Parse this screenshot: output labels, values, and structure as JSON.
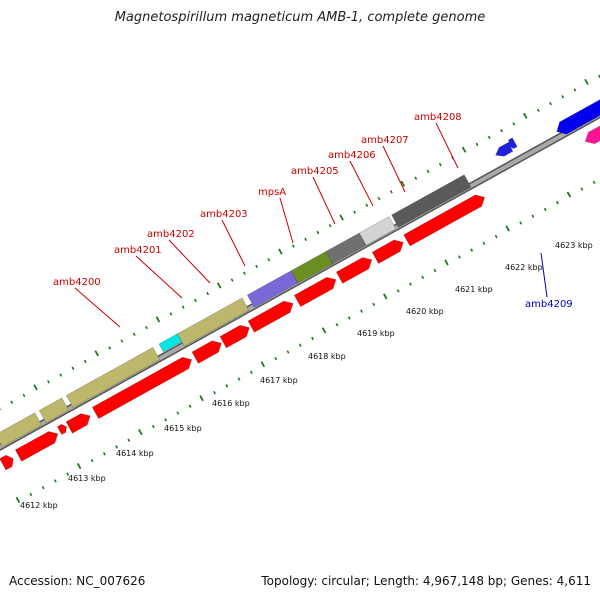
{
  "title": "Magnetospirillum magneticum AMB-1, complete genome",
  "footer": {
    "accession": "Accession: NC_007626",
    "summary": "Topology: circular; Length: 4,967,148 bp; Genes: 4,611"
  },
  "colors": {
    "backbone": "#a9a9a9",
    "cds_forward": "#ff0000",
    "feature_khaki": "#bdb76b",
    "label_red": "#cc0000",
    "label_blue": "#0000cc",
    "tick": "#1a7a1a"
  },
  "axis_labels": [
    "4612 kbp",
    "4613 kbp",
    "4614 kbp",
    "4615 kbp",
    "4616 kbp",
    "4617 kbp",
    "4618 kbp",
    "4619 kbp",
    "4620 kbp",
    "4621 kbp",
    "4622 kbp",
    "4623 kbp"
  ],
  "gene_labels": [
    {
      "text": "amb4200",
      "color": "#cc0000"
    },
    {
      "text": "amb4201",
      "color": "#cc0000"
    },
    {
      "text": "amb4202",
      "color": "#cc0000"
    },
    {
      "text": "amb4203",
      "color": "#cc0000"
    },
    {
      "text": "mpsA",
      "color": "#cc0000"
    },
    {
      "text": "amb4205",
      "color": "#cc0000"
    },
    {
      "text": "amb4206",
      "color": "#cc0000"
    },
    {
      "text": "amb4207",
      "color": "#cc0000"
    },
    {
      "text": "amb4208",
      "color": "#cc0000"
    },
    {
      "text": "amb4209",
      "color": "#0000cc"
    }
  ]
}
